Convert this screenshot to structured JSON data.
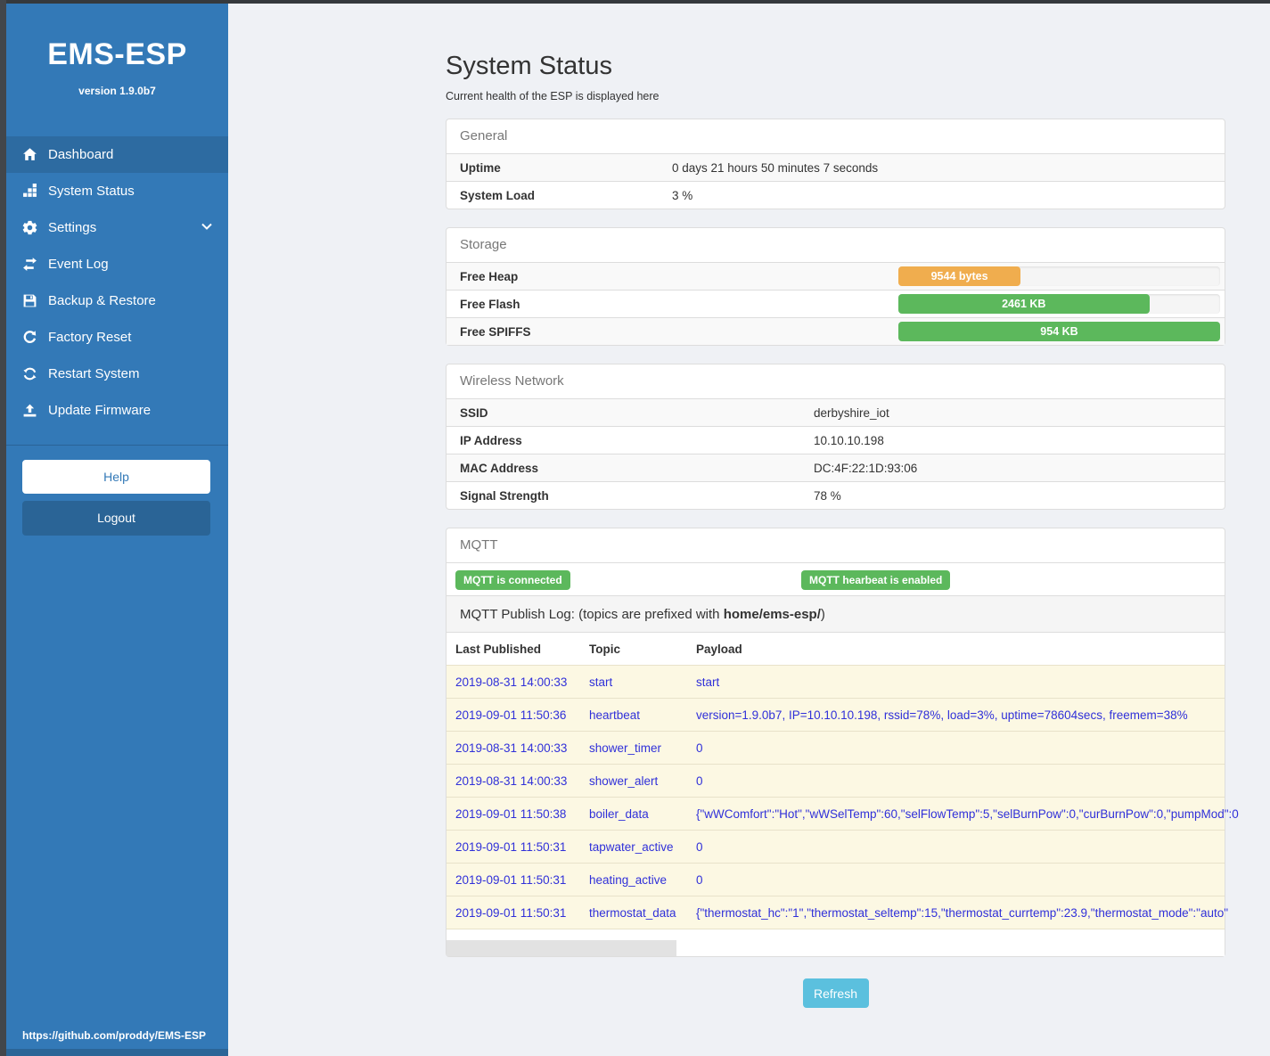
{
  "colors": {
    "sidebar_blue": "#3379b7",
    "active_item_blue": "#2d6ba1",
    "logout_blue": "#2a6496",
    "badge_green": "#5cb85c",
    "bar_orange": "#f0ad4e",
    "bar_green": "#5cb85c",
    "refresh_blue": "#5bc0de",
    "link_blue": "#3030d9",
    "mqtt_row_yellow": "#fcf8e3"
  },
  "sidebar": {
    "title": "EMS-ESP",
    "version": "version 1.9.0b7",
    "items": [
      {
        "label": "Dashboard",
        "icon": "home-icon",
        "active": true
      },
      {
        "label": "System Status",
        "icon": "status-blocks-icon",
        "active": false
      },
      {
        "label": "Settings",
        "icon": "gear-icon",
        "active": false,
        "has_chevron": true
      },
      {
        "label": "Event Log",
        "icon": "exchange-arrows-icon",
        "active": false
      },
      {
        "label": "Backup & Restore",
        "icon": "floppy-save-icon",
        "active": false
      },
      {
        "label": "Factory Reset",
        "icon": "rotate-icon",
        "active": false
      },
      {
        "label": "Restart System",
        "icon": "sync-icon",
        "active": false
      },
      {
        "label": "Update Firmware",
        "icon": "upload-icon",
        "active": false
      }
    ],
    "help_label": "Help",
    "logout_label": "Logout",
    "footer_link": "https://github.com/proddy/EMS-ESP"
  },
  "header": {
    "title": "System Status",
    "subtitle": "Current health of the ESP is displayed here"
  },
  "panels": {
    "general": {
      "title": "General",
      "rows": [
        {
          "label": "Uptime",
          "value": "0 days 21 hours 50 minutes 7 seconds"
        },
        {
          "label": "System Load",
          "value": "3 %"
        }
      ]
    },
    "storage": {
      "title": "Storage",
      "rows": [
        {
          "label": "Free Heap",
          "bar_label": "9544 bytes",
          "percent": 38,
          "color": "#f0ad4e"
        },
        {
          "label": "Free Flash",
          "bar_label": "2461 KB",
          "percent": 78,
          "color": "#5cb85c"
        },
        {
          "label": "Free SPIFFS",
          "bar_label": "954 KB",
          "percent": 100,
          "color": "#5cb85c"
        }
      ]
    },
    "wireless": {
      "title": "Wireless Network",
      "rows": [
        {
          "label": "SSID",
          "value": "derbyshire_iot"
        },
        {
          "label": "IP Address",
          "value": "10.10.10.198"
        },
        {
          "label": "MAC Address",
          "value": "DC:4F:22:1D:93:06"
        },
        {
          "label": "Signal Strength",
          "value": "78 %"
        }
      ]
    },
    "mqtt": {
      "title": "MQTT",
      "badges": [
        "MQTT is connected",
        "MQTT hearbeat is enabled"
      ],
      "log_title_prefix": "MQTT Publish Log: (topics are prefixed with ",
      "log_title_bold": "home/ems-esp/",
      "log_title_suffix": ")",
      "table": {
        "headers": [
          "Last Published",
          "Topic",
          "Payload"
        ],
        "rows": [
          [
            "2019-08-31 14:00:33",
            "start",
            "start"
          ],
          [
            "2019-09-01 11:50:36",
            "heartbeat",
            "version=1.9.0b7, IP=10.10.10.198, rssid=78%, load=3%, uptime=78604secs, freemem=38%"
          ],
          [
            "2019-08-31 14:00:33",
            "shower_timer",
            "0"
          ],
          [
            "2019-08-31 14:00:33",
            "shower_alert",
            "0"
          ],
          [
            "2019-09-01 11:50:38",
            "boiler_data",
            "{\"wWComfort\":\"Hot\",\"wWSelTemp\":60,\"selFlowTemp\":5,\"selBurnPow\":0,\"curBurnPow\":0,\"pumpMod\":0"
          ],
          [
            "2019-09-01 11:50:31",
            "tapwater_active",
            "0"
          ],
          [
            "2019-09-01 11:50:31",
            "heating_active",
            "0"
          ],
          [
            "2019-09-01 11:50:31",
            "thermostat_data",
            "{\"thermostat_hc\":\"1\",\"thermostat_seltemp\":15,\"thermostat_currtemp\":23.9,\"thermostat_mode\":\"auto\""
          ]
        ]
      }
    }
  },
  "refresh_label": "Refresh"
}
